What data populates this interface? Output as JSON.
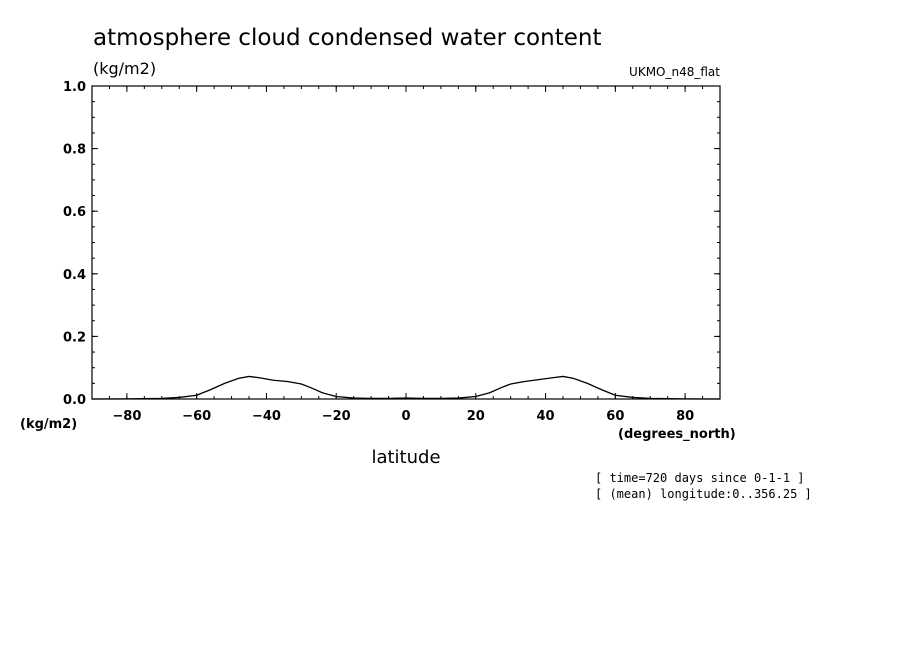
{
  "chart_data": {
    "type": "line",
    "title": "atmosphere cloud condensed water content",
    "units": "(kg/m2)",
    "dataset_label": "UKMO_n48_flat",
    "xlabel": "latitude",
    "x_units": "(degrees_north)",
    "y_units_bottom": "(kg/m2)",
    "xlim": [
      -90,
      90
    ],
    "ylim": [
      0.0,
      1.0
    ],
    "x_ticks": [
      -80,
      -60,
      -40,
      -20,
      0,
      20,
      40,
      60,
      80
    ],
    "x_tick_labels": [
      "-80",
      "-60",
      "-40",
      "-20",
      "0",
      "20",
      "40",
      "60",
      "80"
    ],
    "y_ticks": [
      0.0,
      0.2,
      0.4,
      0.6,
      0.8,
      1.0
    ],
    "y_tick_labels": [
      "0.0",
      "0.2",
      "0.4",
      "0.6",
      "0.8",
      "1.0"
    ],
    "grid": false,
    "series": [
      {
        "x": [
          -90,
          -80,
          -70,
          -65,
          -60,
          -56,
          -52,
          -48,
          -45,
          -42,
          -38,
          -34,
          -30,
          -27,
          -24,
          -20,
          -15,
          -10,
          -5,
          0,
          5,
          10,
          15,
          20,
          24,
          27,
          30,
          34,
          38,
          42,
          45,
          48,
          52,
          56,
          60,
          65,
          70,
          80,
          90
        ],
        "y": [
          0.0,
          0.0005,
          0.002,
          0.005,
          0.012,
          0.03,
          0.05,
          0.066,
          0.072,
          0.068,
          0.06,
          0.056,
          0.048,
          0.035,
          0.02,
          0.008,
          0.003,
          0.002,
          0.002,
          0.003,
          0.002,
          0.002,
          0.003,
          0.008,
          0.02,
          0.035,
          0.048,
          0.056,
          0.062,
          0.068,
          0.072,
          0.066,
          0.05,
          0.03,
          0.012,
          0.005,
          0.002,
          0.0005,
          0.0
        ]
      }
    ],
    "annotations": [
      "[ time=720 days since 0-1-1 ]",
      "[ (mean) longitude:0..356.25 ]"
    ]
  },
  "colors": {
    "line": "#000000",
    "axis": "#000000",
    "background": "#ffffff"
  }
}
